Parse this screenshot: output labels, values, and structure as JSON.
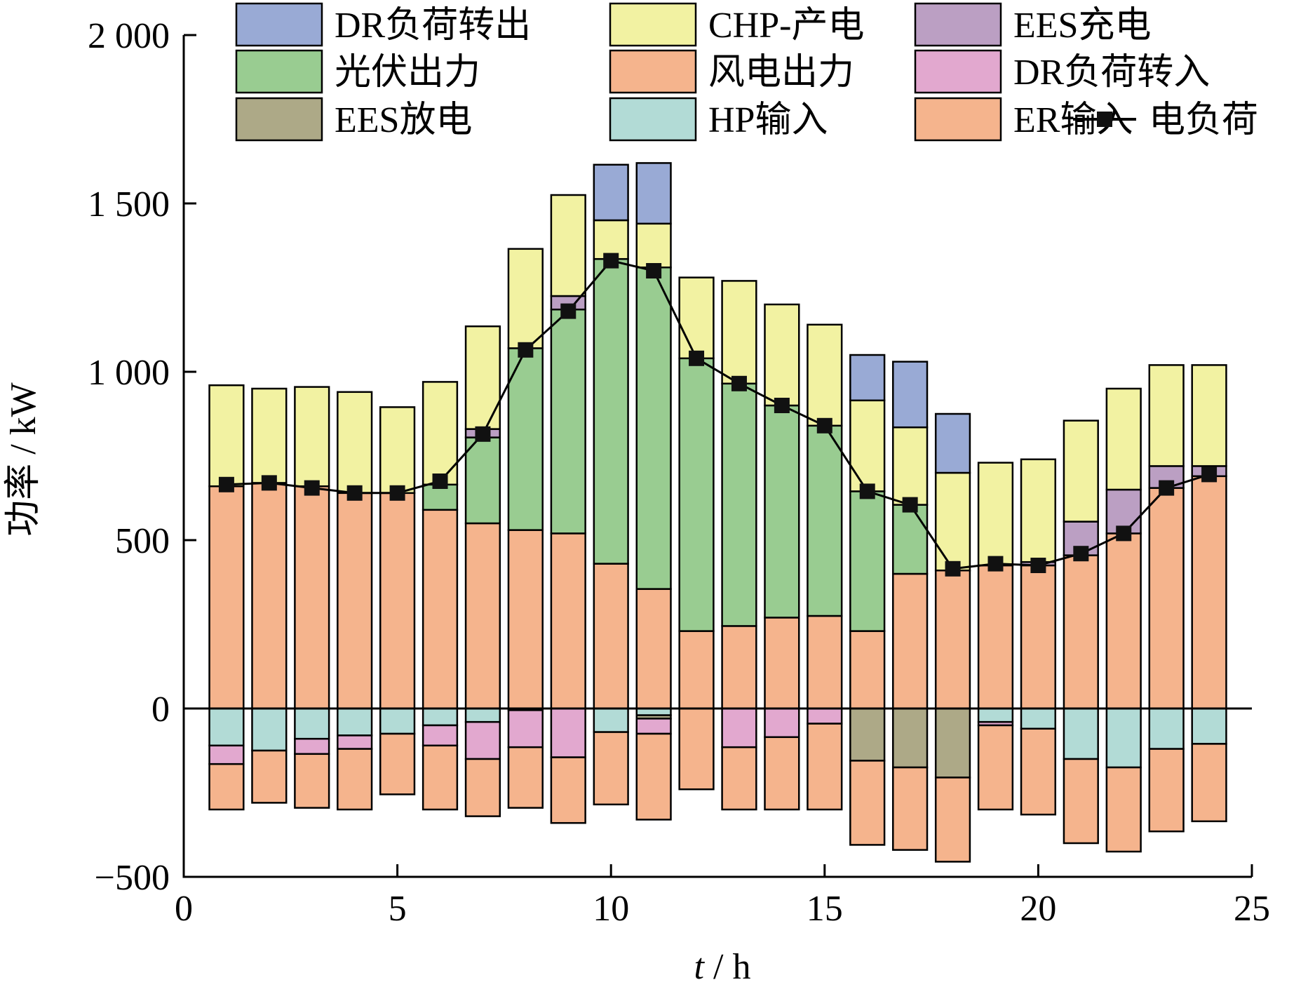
{
  "chart_data": {
    "type": "bar",
    "stacked": true,
    "xlabel_italic": "t",
    "xlabel_unit": " / h",
    "ylabel": "功率 / kW",
    "xlim": [
      0,
      25
    ],
    "ylim": [
      -500,
      2000
    ],
    "xticks": [
      0,
      5,
      10,
      15,
      20,
      25
    ],
    "yticks": [
      -500,
      0,
      500,
      1000,
      1500,
      2000
    ],
    "ytick_labels": [
      "−500",
      "0",
      "500",
      "1 000",
      "1 500",
      "2 000"
    ],
    "legend_position": "top",
    "x": [
      1,
      2,
      3,
      4,
      5,
      6,
      7,
      8,
      9,
      10,
      11,
      12,
      13,
      14,
      15,
      16,
      17,
      18,
      19,
      20,
      21,
      22,
      23,
      24
    ],
    "series": [
      {
        "name": "风电出力",
        "color": "#f5b48d",
        "values": [
          660,
          670,
          660,
          640,
          640,
          590,
          550,
          530,
          520,
          430,
          355,
          230,
          245,
          270,
          275,
          230,
          400,
          410,
          425,
          425,
          455,
          520,
          655,
          690
        ]
      },
      {
        "name": "光伏出力",
        "color": "#99cc91",
        "values": [
          0,
          0,
          0,
          0,
          0,
          75,
          255,
          540,
          665,
          905,
          955,
          810,
          720,
          630,
          565,
          415,
          205,
          0,
          0,
          0,
          0,
          0,
          0,
          0
        ]
      },
      {
        "name": "EES放电",
        "color": "#ada987",
        "values": [
          0,
          0,
          0,
          0,
          0,
          0,
          0,
          0,
          0,
          0,
          0,
          0,
          0,
          0,
          0,
          0,
          0,
          0,
          0,
          0,
          0,
          0,
          0,
          0
        ]
      },
      {
        "name": "DR负荷转入",
        "color": "#e2a8cf",
        "values": [
          0,
          0,
          0,
          0,
          0,
          0,
          0,
          0,
          0,
          0,
          0,
          0,
          0,
          0,
          0,
          0,
          0,
          0,
          0,
          0,
          0,
          0,
          0,
          0
        ]
      },
      {
        "name": "EES充电",
        "color": "#bb9fc3",
        "values": [
          0,
          0,
          0,
          0,
          0,
          0,
          25,
          0,
          40,
          0,
          0,
          0,
          0,
          0,
          0,
          0,
          0,
          0,
          0,
          10,
          100,
          130,
          65,
          30
        ]
      },
      {
        "name": "CHP-产电",
        "color": "#f2f2a2",
        "values": [
          300,
          280,
          295,
          300,
          255,
          305,
          305,
          295,
          300,
          115,
          130,
          240,
          305,
          300,
          300,
          270,
          230,
          290,
          305,
          305,
          300,
          300,
          300,
          300
        ]
      },
      {
        "name": "DR负荷转出",
        "color": "#99aad5",
        "values": [
          0,
          0,
          0,
          0,
          0,
          0,
          0,
          0,
          0,
          165,
          180,
          0,
          0,
          0,
          0,
          135,
          195,
          175,
          0,
          0,
          0,
          0,
          0,
          0
        ]
      },
      {
        "name": "HP输入",
        "color": "#b2dbd6",
        "values": [
          -110,
          -125,
          -90,
          -80,
          -75,
          -50,
          -40,
          0,
          0,
          -70,
          -20,
          0,
          0,
          0,
          0,
          0,
          0,
          0,
          -40,
          -60,
          -150,
          -175,
          -120,
          -105
        ]
      },
      {
        "name": "EES放电",
        "color": "#ada987",
        "values": [
          0,
          0,
          0,
          0,
          0,
          0,
          0,
          -5,
          0,
          0,
          -10,
          0,
          0,
          0,
          0,
          -155,
          -175,
          -205,
          0,
          0,
          0,
          0,
          0,
          0
        ]
      },
      {
        "name": "DR负荷转入",
        "color": "#e2a8cf",
        "values": [
          -55,
          0,
          -45,
          -40,
          0,
          -60,
          -110,
          -110,
          -145,
          0,
          -45,
          0,
          -115,
          -85,
          -45,
          0,
          0,
          0,
          -10,
          0,
          0,
          0,
          0,
          0
        ]
      },
      {
        "name": "ER输入",
        "color": "#f5b48d",
        "values": [
          -135,
          -155,
          -160,
          -180,
          -180,
          -190,
          -170,
          -180,
          -195,
          -215,
          -255,
          -240,
          -185,
          -215,
          -255,
          -250,
          -245,
          -250,
          -250,
          -255,
          -250,
          -250,
          -245,
          -230
        ]
      }
    ],
    "load_line": {
      "name": "电负荷",
      "values": [
        665,
        670,
        655,
        640,
        640,
        675,
        815,
        1065,
        1180,
        1330,
        1300,
        1040,
        965,
        900,
        840,
        645,
        605,
        415,
        430,
        425,
        460,
        520,
        655,
        695
      ]
    }
  },
  "legend": [
    {
      "label": "DR负荷转出",
      "color": "#99aad5"
    },
    {
      "label": "CHP-产电",
      "color": "#f2f2a2"
    },
    {
      "label": "EES充电",
      "color": "#bb9fc3"
    },
    {
      "label": "光伏出力",
      "color": "#99cc91"
    },
    {
      "label": "风电出力",
      "color": "#f5b48d"
    },
    {
      "label": "DR负荷转入",
      "color": "#e2a8cf"
    },
    {
      "label": "EES放电",
      "color": "#ada987"
    },
    {
      "label": "HP输入",
      "color": "#b2dbd6"
    },
    {
      "label": "ER输入",
      "color": "#f5b48d"
    },
    {
      "label": "电负荷",
      "color": "#111111",
      "marker": "line-square"
    }
  ]
}
